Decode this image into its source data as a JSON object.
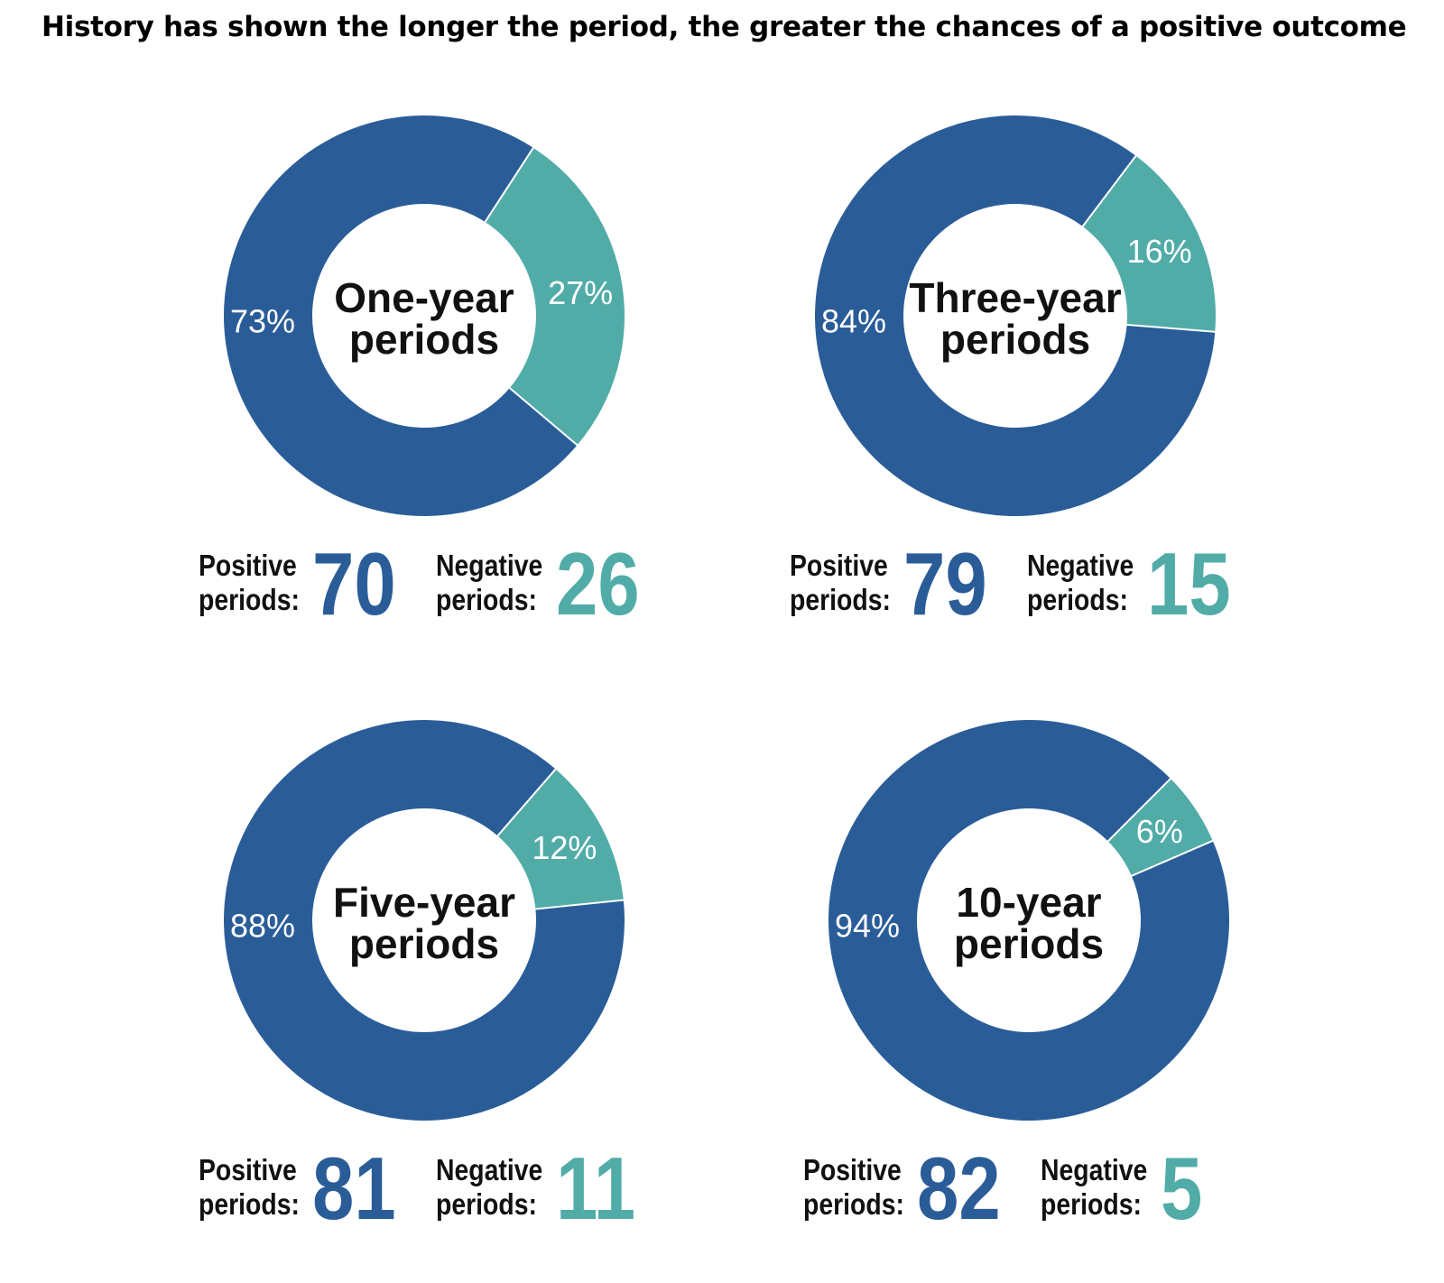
{
  "title": "History has shown the longer the period, the greater the chances of a positive outcome",
  "colors": {
    "positive": "#2a5d98",
    "negative": "#51aca8",
    "center": "#ffffff"
  },
  "chart_data": [
    {
      "type": "pie",
      "center_label": [
        "One-year",
        "periods"
      ],
      "slices": [
        {
          "name": "Positive",
          "value": 73,
          "label": "73%"
        },
        {
          "name": "Negative",
          "value": 27,
          "label": "27%"
        }
      ],
      "positive_label": [
        "Positive",
        "periods:"
      ],
      "positive_count": "70",
      "negative_label": [
        "Negative",
        "periods:"
      ],
      "negative_count": "26"
    },
    {
      "type": "pie",
      "center_label": [
        "Three-year",
        "periods"
      ],
      "slices": [
        {
          "name": "Positive",
          "value": 84,
          "label": "84%"
        },
        {
          "name": "Negative",
          "value": 16,
          "label": "16%"
        }
      ],
      "positive_label": [
        "Positive",
        "periods:"
      ],
      "positive_count": "79",
      "negative_label": [
        "Negative",
        "periods:"
      ],
      "negative_count": "15"
    },
    {
      "type": "pie",
      "center_label": [
        "Five-year",
        "periods"
      ],
      "slices": [
        {
          "name": "Positive",
          "value": 88,
          "label": "88%"
        },
        {
          "name": "Negative",
          "value": 12,
          "label": "12%"
        }
      ],
      "positive_label": [
        "Positive",
        "periods:"
      ],
      "positive_count": "81",
      "negative_label": [
        "Negative",
        "periods:"
      ],
      "negative_count": "11"
    },
    {
      "type": "pie",
      "center_label": [
        "10-year",
        "periods"
      ],
      "slices": [
        {
          "name": "Positive",
          "value": 94,
          "label": "94%"
        },
        {
          "name": "Negative",
          "value": 6,
          "label": "6%"
        }
      ],
      "positive_label": [
        "Positive",
        "periods:"
      ],
      "positive_count": "82",
      "negative_label": [
        "Negative",
        "periods:"
      ],
      "negative_count": "5"
    }
  ]
}
